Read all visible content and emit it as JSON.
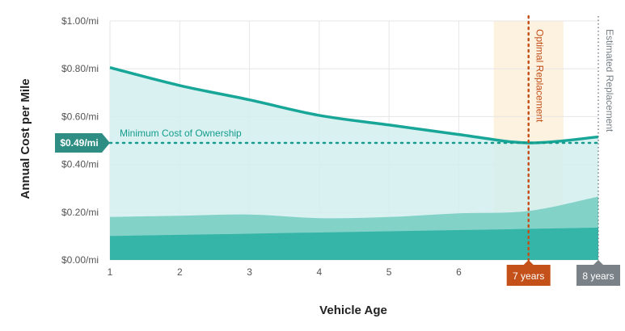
{
  "chart_data": {
    "type": "area",
    "xlabel": "Vehicle Age",
    "ylabel": "Annual Cost per Mile",
    "xlim": [
      1,
      8
    ],
    "ylim": [
      0,
      1.0
    ],
    "x_ticks": [
      1,
      2,
      3,
      4,
      5,
      6
    ],
    "y_ticks": [
      "$0.00/mi",
      "$0.20/mi",
      "$0.40/mi",
      "$0.60/mi",
      "$0.80/mi",
      "$1.00/mi"
    ],
    "y_tick_values": [
      0,
      0.2,
      0.4,
      0.6,
      0.8,
      1.0
    ],
    "grid": true,
    "series": [
      {
        "x": [
          1,
          2,
          3,
          4,
          5,
          6,
          7,
          8
        ],
        "values": [
          0.1,
          0.105,
          0.11,
          0.115,
          0.12,
          0.125,
          0.13,
          0.135
        ]
      },
      {
        "x": [
          1,
          2,
          3,
          4,
          5,
          6,
          7,
          8
        ],
        "values": [
          0.18,
          0.185,
          0.19,
          0.175,
          0.18,
          0.195,
          0.205,
          0.265
        ]
      },
      {
        "x": [
          1,
          2,
          3,
          4,
          5,
          6,
          7,
          8
        ],
        "values": [
          0.805,
          0.73,
          0.67,
          0.605,
          0.565,
          0.525,
          0.49,
          0.515
        ]
      }
    ],
    "min_line": {
      "value": 0.49,
      "label": "Minimum Cost of Ownership",
      "marker": "$0.49/mi"
    },
    "optimal": {
      "x": 7,
      "label": "Optimal Replacement",
      "marker": "7 years",
      "band": [
        6.5,
        7.5
      ]
    },
    "estimated": {
      "x": 8,
      "label": "Estimated Replacement",
      "marker": "8 years"
    },
    "colors": {
      "total_fill": "#d2efee",
      "total_line": "#17a697",
      "mid_fill": "#82d2c8",
      "bottom_fill": "#35b5a7",
      "min_line": "#139c8c",
      "optimal": "#c4501a",
      "optimal_band": "#fdf1df",
      "estimated": "#7a8288",
      "grid": "#e6e6e6"
    }
  }
}
